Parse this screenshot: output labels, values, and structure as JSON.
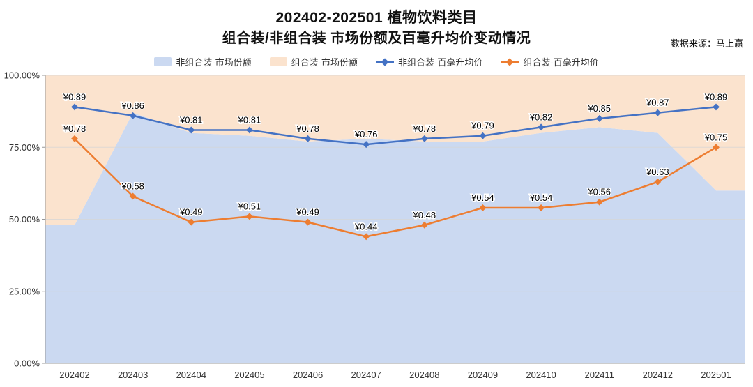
{
  "header": {
    "title_line1": "202402-202501 植物饮料类目",
    "title_line2": "组合装/非组合装 市场份额及百毫升均价变动情况",
    "source": "数据来源：马上赢"
  },
  "colors": {
    "noncombo_share_area": "#cbd9f1",
    "combo_share_area": "#fbe3ce",
    "noncombo_price_line": "#4472c4",
    "combo_price_line": "#ed7d31",
    "grid_line": "#d6d6d6",
    "axis_line": "#999999",
    "text": "#111111"
  },
  "legend": [
    {
      "label": "非组合装-市场份额",
      "type": "area",
      "color": "#cbd9f1"
    },
    {
      "label": "组合装-市场份额",
      "type": "area",
      "color": "#fbe3ce"
    },
    {
      "label": "非组合装-百毫升均价",
      "type": "line",
      "color": "#4472c4"
    },
    {
      "label": "组合装-百毫升均价",
      "type": "line",
      "color": "#ed7d31"
    }
  ],
  "chart_data": {
    "type": "area",
    "subtype": "stacked-100pct-share-areas-with-price-lines-on-same-scale",
    "title": "202402-202501 植物饮料类目 组合装/非组合装 市场份额及百毫升均价变动情况",
    "categories": [
      "202402",
      "202403",
      "202404",
      "202405",
      "202406",
      "202407",
      "202408",
      "202409",
      "202410",
      "202411",
      "202412",
      "202501"
    ],
    "series": [
      {
        "name": "非组合装-市场份额",
        "kind": "area",
        "unit": "%",
        "color": "#cbd9f1",
        "values": [
          48,
          87,
          80,
          79,
          77,
          78,
          77,
          77,
          80,
          82,
          80,
          60
        ]
      },
      {
        "name": "组合装-市场份额",
        "kind": "area",
        "unit": "%",
        "color": "#fbe3ce",
        "values": [
          52,
          13,
          20,
          21,
          23,
          22,
          23,
          23,
          20,
          18,
          20,
          40
        ]
      },
      {
        "name": "非组合装-百毫升均价",
        "kind": "line",
        "unit": "¥",
        "color": "#4472c4",
        "values": [
          0.89,
          0.86,
          0.81,
          0.81,
          0.78,
          0.76,
          0.78,
          0.79,
          0.82,
          0.85,
          0.87,
          0.89
        ]
      },
      {
        "name": "组合装-百毫升均价",
        "kind": "line",
        "unit": "¥",
        "color": "#ed7d31",
        "values": [
          0.78,
          0.58,
          0.49,
          0.51,
          0.49,
          0.44,
          0.48,
          0.54,
          0.54,
          0.56,
          0.63,
          0.75
        ]
      }
    ],
    "y_axis": {
      "tick_values": [
        0,
        25,
        50,
        75,
        100
      ],
      "tick_labels": [
        "0.00%",
        "25.00%",
        "50.00%",
        "75.00%",
        "100.00%"
      ],
      "min": 0,
      "max": 100
    },
    "price_axis_note": "price lines plotted on 0-1 yuan scale aligned with 0-100% axis",
    "price_label_prefix": "¥",
    "grid": true,
    "legend_position": "top"
  }
}
